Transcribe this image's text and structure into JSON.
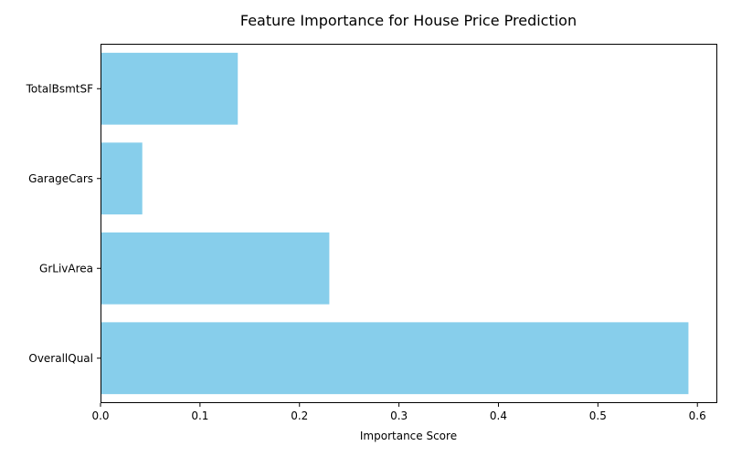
{
  "chart_data": {
    "type": "bar",
    "orientation": "horizontal",
    "title": "Feature Importance for House Price Prediction",
    "xlabel": "Importance Score",
    "ylabel": "",
    "categories": [
      "OverallQual",
      "GrLivArea",
      "GarageCars",
      "TotalBsmtSF"
    ],
    "values": [
      0.591,
      0.23,
      0.042,
      0.138
    ],
    "xlim": [
      0,
      0.62
    ],
    "xticks": [
      0.0,
      0.1,
      0.2,
      0.3,
      0.4,
      0.5,
      0.6
    ],
    "xtick_labels": [
      "0.0",
      "0.1",
      "0.2",
      "0.3",
      "0.4",
      "0.5",
      "0.6"
    ],
    "bar_color": "#87ceeb",
    "grid": false,
    "legend": "none"
  }
}
